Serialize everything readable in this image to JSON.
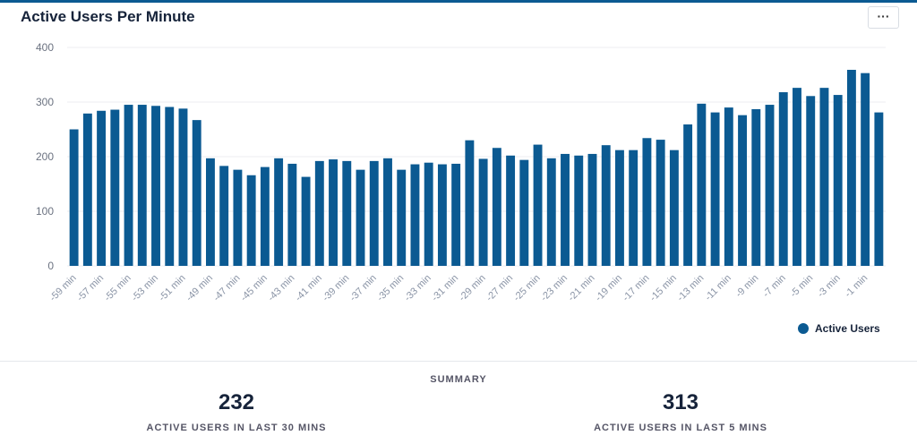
{
  "header": {
    "title": "Active Users Per Minute",
    "more_label": "···"
  },
  "chart_data": {
    "type": "bar",
    "title": "Active Users Per Minute",
    "categories": [
      "-59 min",
      "-58 min",
      "-57 min",
      "-56 min",
      "-55 min",
      "-54 min",
      "-53 min",
      "-52 min",
      "-51 min",
      "-50 min",
      "-49 min",
      "-48 min",
      "-47 min",
      "-46 min",
      "-45 min",
      "-44 min",
      "-43 min",
      "-42 min",
      "-41 min",
      "-40 min",
      "-39 min",
      "-38 min",
      "-37 min",
      "-36 min",
      "-35 min",
      "-34 min",
      "-33 min",
      "-32 min",
      "-31 min",
      "-30 min",
      "-29 min",
      "-28 min",
      "-27 min",
      "-26 min",
      "-25 min",
      "-24 min",
      "-23 min",
      "-22 min",
      "-21 min",
      "-20 min",
      "-19 min",
      "-18 min",
      "-17 min",
      "-16 min",
      "-15 min",
      "-14 min",
      "-13 min",
      "-12 min",
      "-11 min",
      "-10 min",
      "-9 min",
      "-8 min",
      "-7 min",
      "-6 min",
      "-5 min",
      "-4 min",
      "-3 min",
      "-2 min",
      "-1 min",
      "0 min"
    ],
    "series": [
      {
        "name": "Active Users",
        "color": "#0b5a92",
        "values": [
          250,
          279,
          284,
          286,
          295,
          295,
          293,
          291,
          288,
          267,
          197,
          183,
          176,
          166,
          181,
          197,
          187,
          163,
          192,
          195,
          192,
          176,
          192,
          197,
          176,
          186,
          189,
          186,
          187,
          230,
          196,
          216,
          202,
          194,
          222,
          197,
          205,
          202,
          205,
          221,
          212,
          212,
          234,
          231,
          212,
          259,
          297,
          281,
          290,
          276,
          287,
          295,
          318,
          326,
          311,
          326,
          313,
          359,
          353,
          281
        ]
      }
    ],
    "yticks": [
      0,
      100,
      200,
      300,
      400
    ],
    "ylim": [
      0,
      400
    ],
    "grid": true,
    "legend": "bottom-right"
  },
  "summary": {
    "heading": "SUMMARY",
    "stats": [
      {
        "value": "232",
        "label": "ACTIVE USERS IN LAST 30 MINS"
      },
      {
        "value": "313",
        "label": "ACTIVE USERS IN LAST 5 MINS"
      }
    ]
  }
}
